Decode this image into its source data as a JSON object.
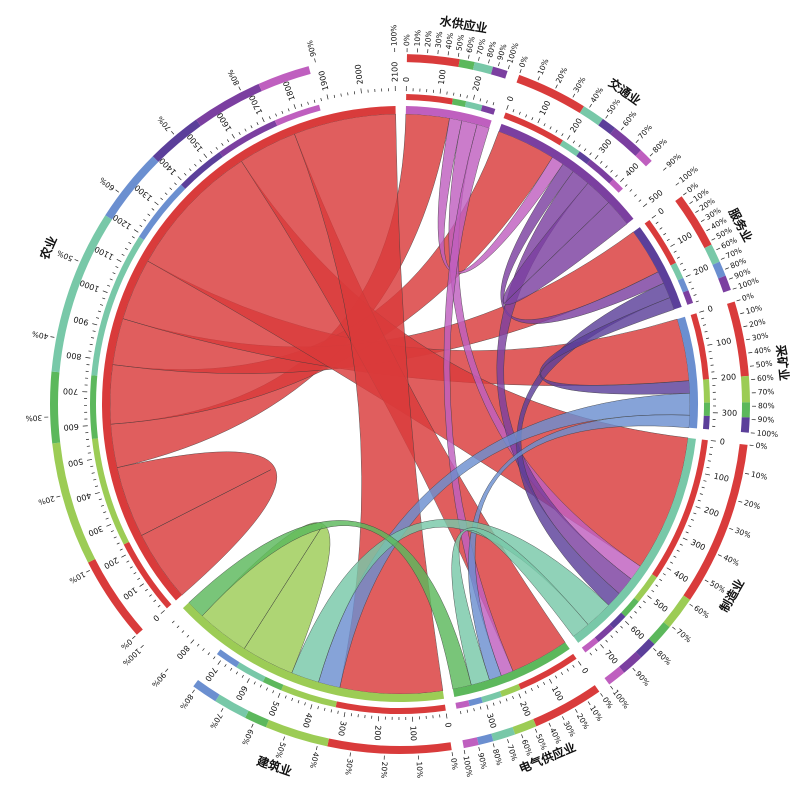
{
  "chart_data": {
    "type": "chord",
    "title": "",
    "sectors": [
      {
        "name": "水供应业",
        "color": "#bf5fbf"
      },
      {
        "name": "交通业",
        "color": "#7b3fa0"
      },
      {
        "name": "服务业",
        "color": "#5b3f9a"
      },
      {
        "name": "采矿业",
        "color": "#6b8fd0"
      },
      {
        "name": "制造业",
        "color": "#78c8a8"
      },
      {
        "name": "电气供应业",
        "color": "#5cb85c"
      },
      {
        "name": "建筑业",
        "color": "#9ccc55"
      },
      {
        "name": "农业",
        "color": "#d93b3b"
      }
    ],
    "flows_note": "",
    "flows": [
      {
        "from": "农业",
        "to": "农业",
        "value": 230
      },
      {
        "from": "农业",
        "to": "水供应业",
        "value": 140
      },
      {
        "from": "农业",
        "to": "交通业",
        "value": 190
      },
      {
        "from": "农业",
        "to": "服务业",
        "value": 150
      },
      {
        "from": "农业",
        "to": "采矿业",
        "value": 200
      },
      {
        "from": "农业",
        "to": "制造业",
        "value": 440
      },
      {
        "from": "农业",
        "to": "电气供应业",
        "value": 190
      },
      {
        "from": "农业",
        "to": "建筑业",
        "value": 330
      },
      {
        "from": "水供应业",
        "to": "交通业",
        "value": 40
      },
      {
        "from": "水供应业",
        "to": "制造业",
        "value": 50
      },
      {
        "from": "水供应业",
        "to": "电气供应业",
        "value": 40
      },
      {
        "from": "交通业",
        "to": "服务业",
        "value": 40
      },
      {
        "from": "交通业",
        "to": "制造业",
        "value": 60
      },
      {
        "from": "交通业",
        "to": "交通业",
        "value": 90
      },
      {
        "from": "服务业",
        "to": "制造业",
        "value": 50
      },
      {
        "from": "服务业",
        "to": "采矿业",
        "value": 40
      },
      {
        "from": "采矿业",
        "to": "建筑业",
        "value": 70
      },
      {
        "from": "采矿业",
        "to": "电气供应业",
        "value": 40
      },
      {
        "from": "制造业",
        "to": "建筑业",
        "value": 90
      },
      {
        "from": "制造业",
        "to": "电气供应业",
        "value": 60
      },
      {
        "from": "建筑业",
        "to": "建筑业",
        "value": 170
      },
      {
        "from": "电气供应业",
        "to": "建筑业",
        "value": 60
      }
    ],
    "tick_step": 100,
    "pct_ticks": [
      "0%",
      "10%",
      "20%",
      "30%",
      "40%",
      "50%",
      "60%",
      "70%",
      "80%",
      "90%",
      "100%"
    ]
  }
}
